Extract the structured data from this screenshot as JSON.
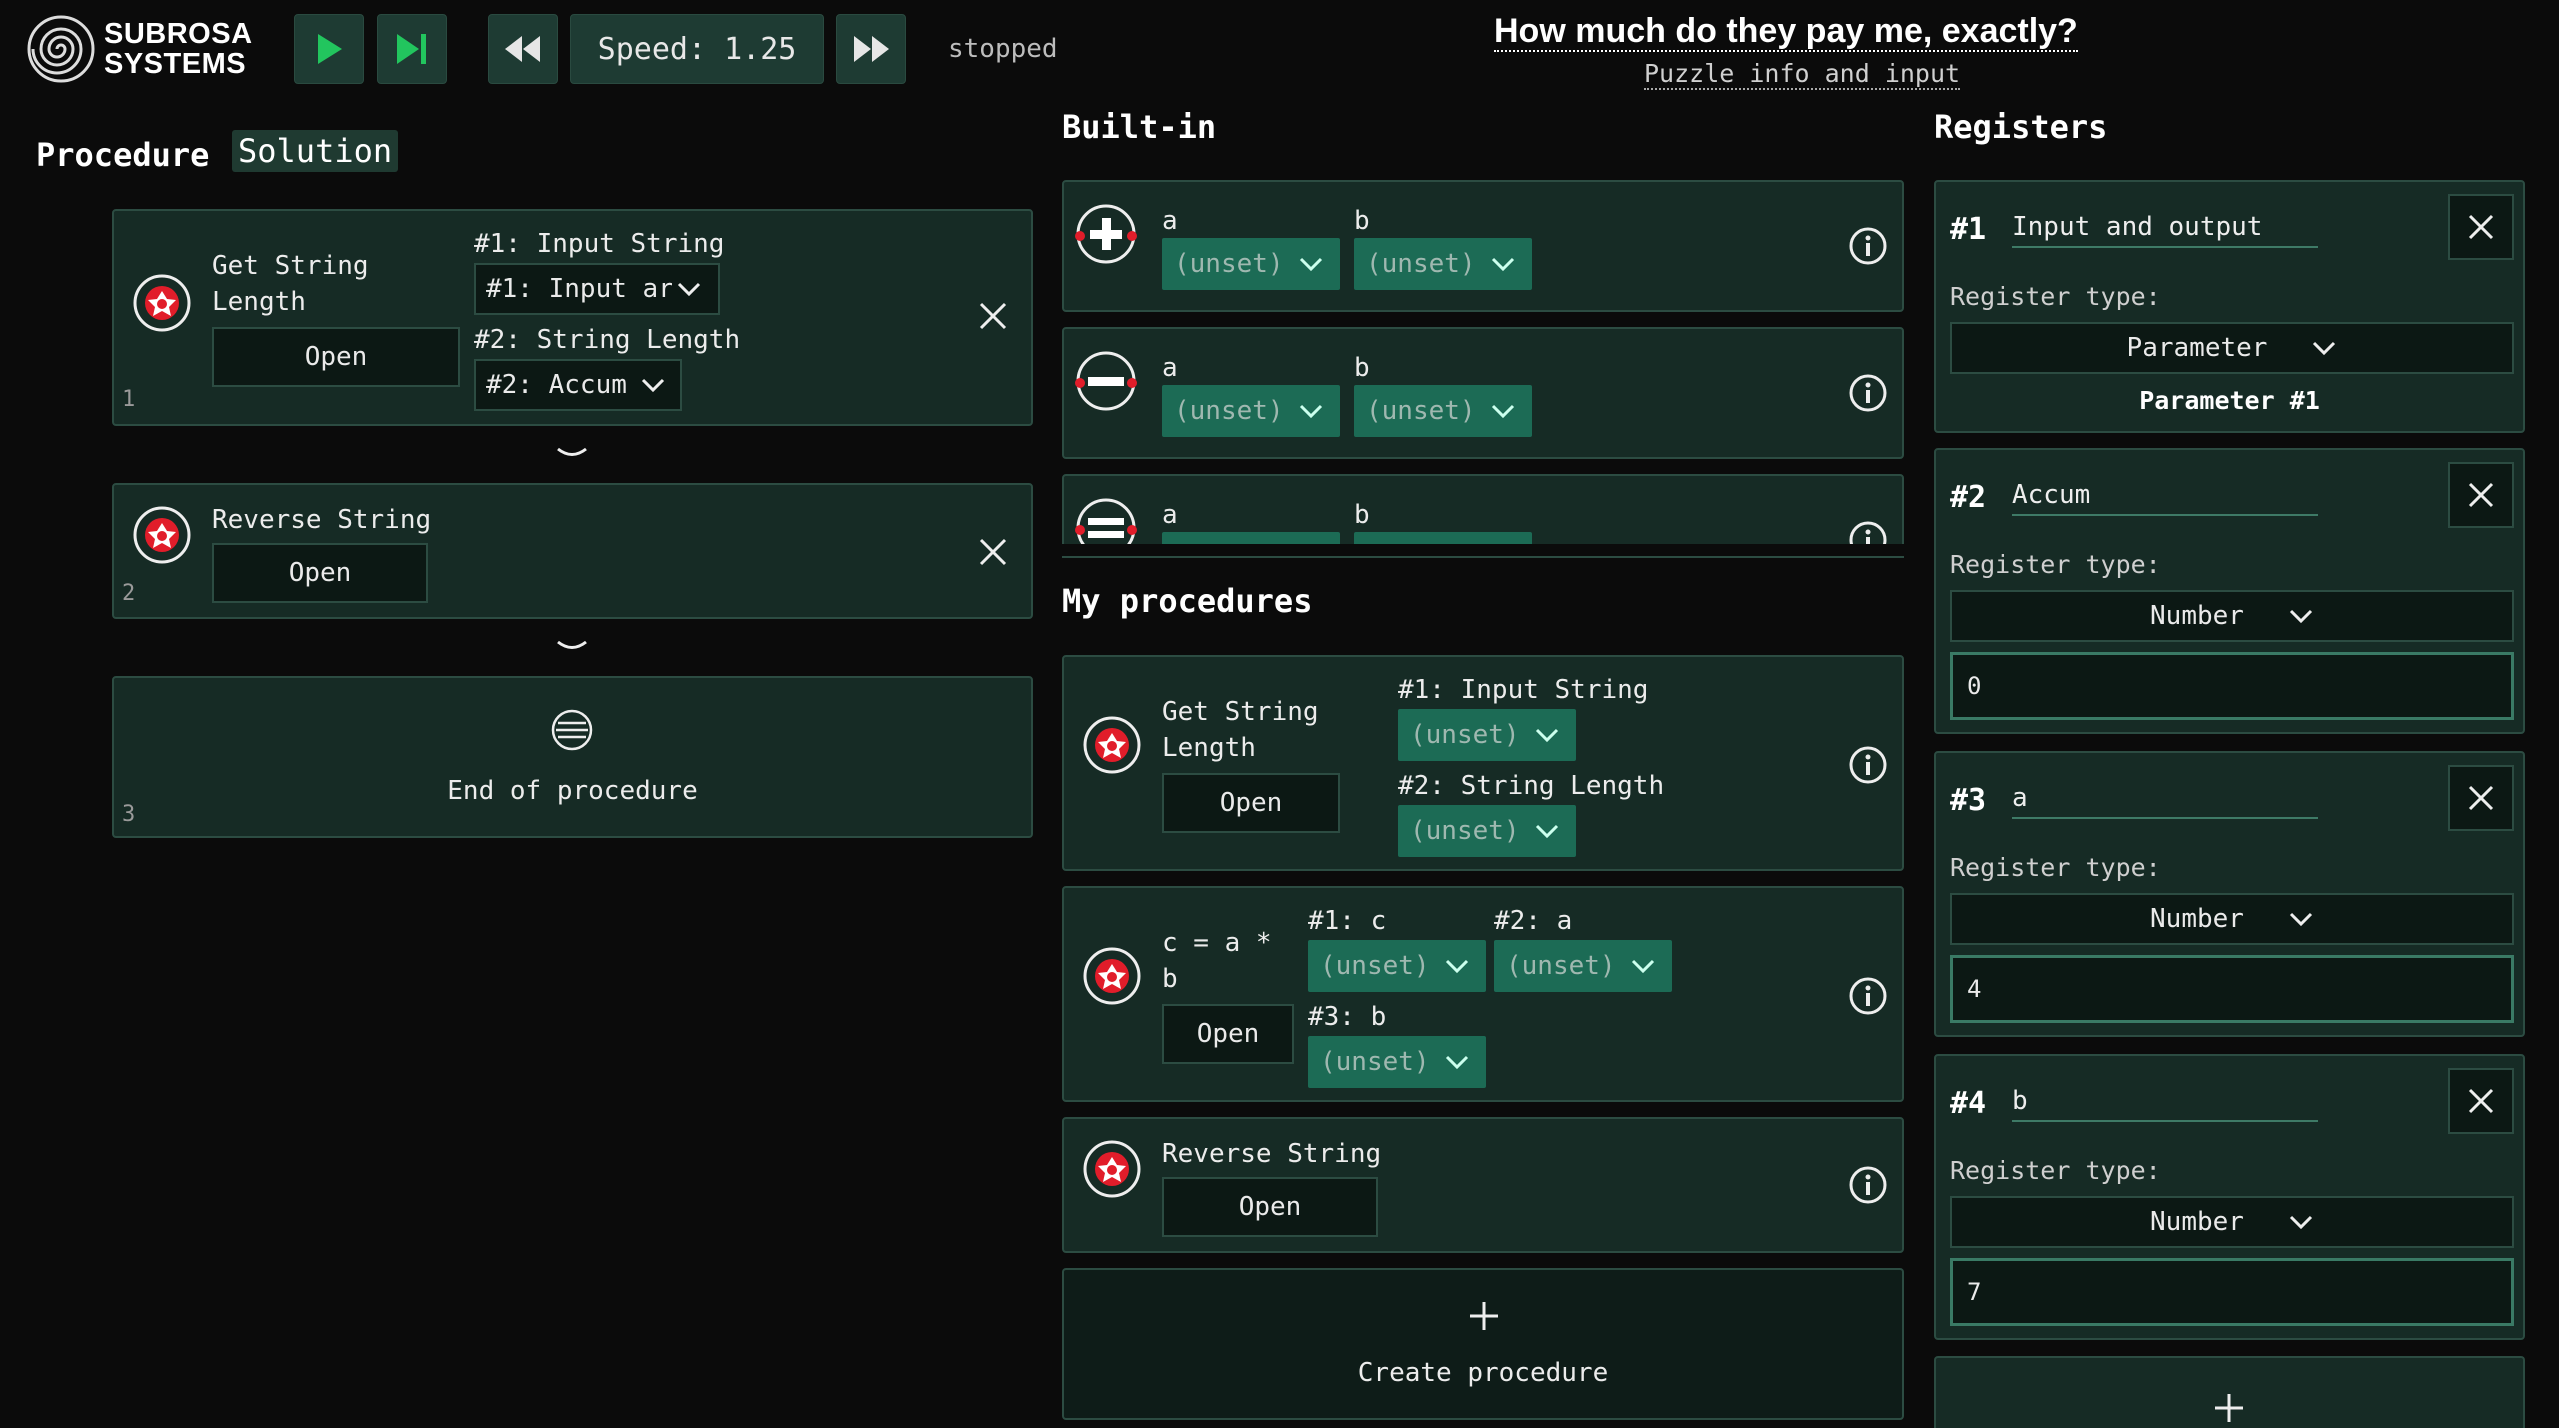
{
  "brand": {
    "line1": "SUBROSA",
    "line2": "SYSTEMS"
  },
  "toolbar": {
    "speed_label": "Speed: 1.25",
    "status": "stopped"
  },
  "puzzle": {
    "title": "How much do they pay me, exactly?",
    "info_link": "Puzzle info and input"
  },
  "procedure_panel": {
    "title": "Procedure",
    "tab_solution": "Solution",
    "steps": [
      {
        "name_line1": "Get String",
        "name_line2": "Length",
        "open": "Open",
        "index": "1",
        "param1_label": "#1: Input String",
        "param1_value": "#1: Input ar",
        "param2_label": "#2: String Length",
        "param2_value": "#2: Accum"
      },
      {
        "name": "Reverse String",
        "open": "Open",
        "index": "2"
      }
    ],
    "end": {
      "label": "End of procedure",
      "index": "3"
    }
  },
  "builtin": {
    "title": "Built-in",
    "items": [
      {
        "op": "add",
        "a_label": "a",
        "b_label": "b",
        "a_value": "(unset)",
        "b_value": "(unset)"
      },
      {
        "op": "subtract",
        "a_label": "a",
        "b_label": "b",
        "a_value": "(unset)",
        "b_value": "(unset)"
      },
      {
        "op": "equals",
        "a_label": "a",
        "b_label": "b"
      }
    ]
  },
  "my_procedures": {
    "title": "My procedures",
    "items": [
      {
        "name_line1": "Get String",
        "name_line2": "Length",
        "open": "Open",
        "p1_label": "#1: Input String",
        "p1_value": "(unset)",
        "p2_label": "#2: String Length",
        "p2_value": "(unset)"
      },
      {
        "name_line1": "c = a *",
        "name_line2": "b",
        "open": "Open",
        "p1_label": "#1: c",
        "p1_value": "(unset)",
        "p2_label": "#2: a",
        "p2_value": "(unset)",
        "p3_label": "#3: b",
        "p3_value": "(unset)"
      },
      {
        "name": "Reverse String",
        "open": "Open"
      }
    ],
    "create_label": "Create procedure"
  },
  "registers": {
    "title": "Registers",
    "type_label": "Register type:",
    "items": [
      {
        "num": "#1",
        "name": "Input and output",
        "type": "Parameter",
        "extra": "Parameter #1"
      },
      {
        "num": "#2",
        "name": "Accum",
        "type": "Number",
        "value": "0"
      },
      {
        "num": "#3",
        "name": "a",
        "type": "Number",
        "value": "4"
      },
      {
        "num": "#4",
        "name": "b",
        "type": "Number",
        "value": "7"
      }
    ]
  },
  "colors": {
    "accent_green": "#22c55e",
    "panel": "#162b25",
    "dropdown_green": "#1c6b55",
    "icon_red": "#e11d2a"
  }
}
